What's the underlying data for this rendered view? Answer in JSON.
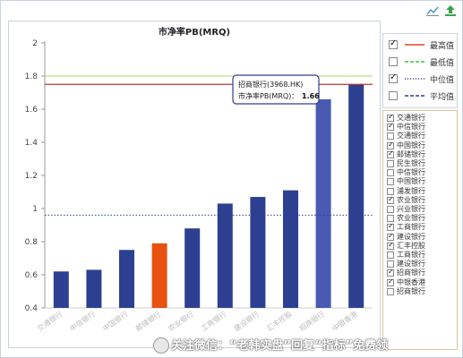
{
  "toolbar": {
    "icons": [
      "line-chart-icon",
      "export-icon"
    ]
  },
  "legend": {
    "items": [
      {
        "label": "最高值",
        "checked": true,
        "color": "#d9472b",
        "style": "solid"
      },
      {
        "label": "最低值",
        "checked": false,
        "color": "#33cc33",
        "style": "dashed"
      },
      {
        "label": "中位值",
        "checked": true,
        "color": "#2a3f96",
        "style": "dotted"
      },
      {
        "label": "平均值",
        "checked": false,
        "color": "#2a3f96",
        "style": "dashed"
      }
    ]
  },
  "bank_list": [
    {
      "label": "交通银行",
      "checked": true
    },
    {
      "label": "中信银行",
      "checked": true
    },
    {
      "label": "交通银行",
      "checked": false
    },
    {
      "label": "中国银行",
      "checked": true
    },
    {
      "label": "邮储银行",
      "checked": true
    },
    {
      "label": "民生银行",
      "checked": false
    },
    {
      "label": "中信银行",
      "checked": false
    },
    {
      "label": "中国银行",
      "checked": false
    },
    {
      "label": "浦发银行",
      "checked": false
    },
    {
      "label": "农业银行",
      "checked": true
    },
    {
      "label": "兴业银行",
      "checked": false
    },
    {
      "label": "农业银行",
      "checked": false
    },
    {
      "label": "工商银行",
      "checked": true
    },
    {
      "label": "建设银行",
      "checked": true
    },
    {
      "label": "汇丰控股",
      "checked": true
    },
    {
      "label": "工商银行",
      "checked": false
    },
    {
      "label": "建设银行",
      "checked": false
    },
    {
      "label": "招商银行",
      "checked": true
    },
    {
      "label": "中银香港",
      "checked": true
    },
    {
      "label": "招商银行",
      "checked": false
    }
  ],
  "tooltip": {
    "line1": "招商银行(3968.HK)",
    "line2_label": "市净率PB(MRQ)：",
    "line2_value": "1.66"
  },
  "watermark": "关注微信：“老韩实盘”回复“指标”免费领",
  "chart_data": {
    "type": "bar",
    "title": "市净率PB(MRQ)",
    "categories": [
      "交通银行",
      "中信银行",
      "中国银行",
      "邮储银行",
      "农业银行",
      "工商银行",
      "建设银行",
      "汇丰控股",
      "招商银行",
      "中银香港"
    ],
    "values": [
      0.62,
      0.63,
      0.75,
      0.79,
      0.88,
      1.03,
      1.07,
      1.11,
      1.66,
      1.75
    ],
    "bar_colors": [
      "#2d3f91",
      "#2d3f91",
      "#2d3f91",
      "#e8510f",
      "#2d3f91",
      "#2d3f91",
      "#2d3f91",
      "#2d3f91",
      "#4a5ab0",
      "#2d3f91"
    ],
    "ylim": [
      0.4,
      2
    ],
    "yticks": [
      "0.4",
      "0.6",
      "0.8",
      "1",
      "1.2",
      "1.4",
      "1.6",
      "1.8",
      "2"
    ],
    "reference_lines": {
      "max": 1.75,
      "median": 0.96,
      "green": 1.8
    },
    "grid": false,
    "legend": "right"
  }
}
